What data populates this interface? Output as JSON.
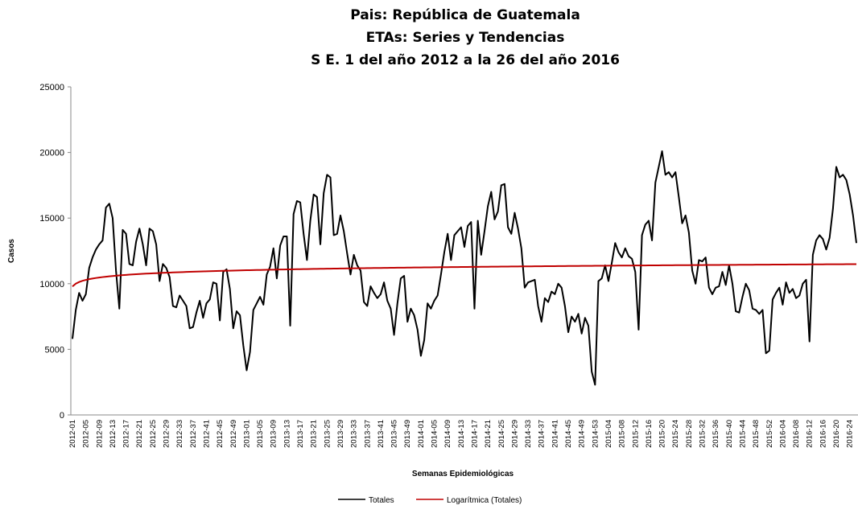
{
  "chart_data": {
    "type": "line",
    "title": [
      "Pais: República de Guatemala",
      "ETAs: Series y Tendencias",
      "S E. 1 del  año 2012 a la  26 del año 2016"
    ],
    "x_label": "Semanas Epidemiológicas",
    "y_label": "Casos",
    "categories": [
      "2012-01",
      null,
      null,
      null,
      "2012-05",
      null,
      null,
      null,
      "2012-09",
      null,
      null,
      null,
      "2012-13",
      null,
      null,
      null,
      "2012-17",
      null,
      null,
      null,
      "2012-21",
      null,
      null,
      null,
      "2012-25",
      null,
      null,
      null,
      "2012-29",
      null,
      null,
      null,
      "2012-33",
      null,
      null,
      null,
      "2012-37",
      null,
      null,
      null,
      "2012-41",
      null,
      null,
      null,
      "2012-45",
      null,
      null,
      null,
      "2012-49",
      null,
      null,
      null,
      "2013-01",
      null,
      null,
      null,
      "2013-05",
      null,
      null,
      null,
      "2013-09",
      null,
      null,
      null,
      "2013-13",
      null,
      null,
      null,
      "2013-17",
      null,
      null,
      null,
      "2013-21",
      null,
      null,
      null,
      "2013-25",
      null,
      null,
      null,
      "2013-29",
      null,
      null,
      null,
      "2013-33",
      null,
      null,
      null,
      "2013-37",
      null,
      null,
      null,
      "2013-41",
      null,
      null,
      null,
      "2013-45",
      null,
      null,
      null,
      "2013-49",
      null,
      null,
      null,
      "2014-01",
      null,
      null,
      null,
      "2014-05",
      null,
      null,
      null,
      "2014-09",
      null,
      null,
      null,
      "2014-13",
      null,
      null,
      null,
      "2014-17",
      null,
      null,
      null,
      "2014-21",
      null,
      null,
      null,
      "2014-25",
      null,
      null,
      null,
      "2014-29",
      null,
      null,
      null,
      "2014-33",
      null,
      null,
      null,
      "2014-37",
      null,
      null,
      null,
      "2014-41",
      null,
      null,
      null,
      "2014-45",
      null,
      null,
      null,
      "2014-49",
      null,
      null,
      null,
      "2014-53",
      null,
      null,
      null,
      "2015-04",
      null,
      null,
      null,
      "2015-08",
      null,
      null,
      null,
      "2015-12",
      null,
      null,
      null,
      "2015-16",
      null,
      null,
      null,
      "2015-20",
      null,
      null,
      null,
      "2015-24",
      null,
      null,
      null,
      "2015-28",
      null,
      null,
      null,
      "2015-32",
      null,
      null,
      null,
      "2015-36",
      null,
      null,
      null,
      "2015-40",
      null,
      null,
      null,
      "2015-44",
      null,
      null,
      null,
      "2015-48",
      null,
      null,
      null,
      "2015-52",
      null,
      null,
      null,
      "2016-04",
      null,
      null,
      null,
      "2016-08",
      null,
      null,
      null,
      "2016-12",
      null,
      null,
      null,
      "2016-16",
      null,
      null,
      null,
      "2016-20",
      null,
      null,
      null,
      "2016-24",
      null,
      null
    ],
    "series": [
      {
        "name": "Totales",
        "color": "#000000",
        "values": [
          5800,
          8000,
          9300,
          8700,
          9200,
          11200,
          12000,
          12600,
          13000,
          13300,
          15800,
          16100,
          15000,
          11000,
          8100,
          14100,
          13800,
          11500,
          11400,
          13200,
          14200,
          13000,
          11400,
          14200,
          14000,
          13000,
          10200,
          11500,
          11200,
          10500,
          8300,
          8200,
          9100,
          8700,
          8300,
          6600,
          6700,
          7800,
          8700,
          7400,
          8500,
          8800,
          10100,
          10000,
          7200,
          10900,
          11100,
          9600,
          6600,
          7900,
          7600,
          5300,
          3400,
          4800,
          8000,
          8500,
          9000,
          8400,
          10700,
          11300,
          12700,
          10400,
          12900,
          13600,
          13600,
          6800,
          15300,
          16300,
          16200,
          13800,
          11800,
          14800,
          16800,
          16600,
          13000,
          16900,
          18300,
          18100,
          13700,
          13800,
          15200,
          14000,
          12300,
          10700,
          12200,
          11400,
          11000,
          8600,
          8300,
          9800,
          9300,
          8900,
          9200,
          10100,
          8700,
          8100,
          6100,
          8500,
          10400,
          10600,
          7100,
          8100,
          7600,
          6500,
          4500,
          5700,
          8500,
          8100,
          8700,
          9100,
          10700,
          12400,
          13800,
          11800,
          13700,
          14000,
          14300,
          12800,
          14400,
          14700,
          8100,
          14800,
          12200,
          14000,
          15900,
          17000,
          14900,
          15500,
          17500,
          17600,
          14300,
          13800,
          15400,
          14200,
          12700,
          9700,
          10100,
          10200,
          10300,
          8300,
          7100,
          8900,
          8600,
          9400,
          9200,
          10000,
          9700,
          8300,
          6300,
          7500,
          7100,
          7700,
          6200,
          7400,
          6800,
          3300,
          2300,
          10200,
          10400,
          11400,
          10200,
          11600,
          13100,
          12400,
          12000,
          12700,
          12100,
          11900,
          10900,
          6500,
          13700,
          14500,
          14800,
          13300,
          17700,
          18900,
          20100,
          18300,
          18500,
          18100,
          18500,
          16600,
          14600,
          15200,
          13900,
          11000,
          10000,
          11800,
          11700,
          12000,
          9700,
          9200,
          9700,
          9800,
          10900,
          9900,
          11400,
          10000,
          7900,
          7800,
          9000,
          10000,
          9500,
          8100,
          8000,
          7700,
          8000,
          4700,
          4900,
          8800,
          9300,
          9700,
          8400,
          10100,
          9300,
          9600,
          8900,
          9100,
          10000,
          10300,
          5600,
          12200,
          13300,
          13700,
          13400,
          12600,
          13500,
          15700,
          18900,
          18100,
          18300,
          17900,
          16800,
          15200,
          13100
        ]
      },
      {
        "name": "Logarítmica (Totales)",
        "color": "#c00000",
        "trendline": "logarithmic"
      }
    ],
    "ylim": [
      0,
      25000
    ],
    "yticks": [
      0,
      5000,
      10000,
      15000,
      20000,
      25000
    ],
    "grid": false,
    "legend": "bottom"
  }
}
